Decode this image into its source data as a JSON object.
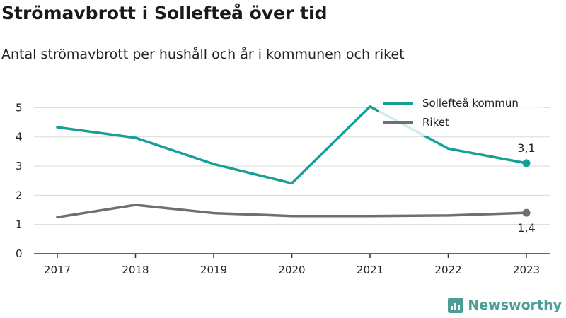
{
  "title": "Strömavbrott i Sollefteå över tid",
  "subtitle": "Antal strömavbrott per hushåll och år i kommunen och riket",
  "brand": "Newsworthy",
  "chart_data": {
    "type": "line",
    "x": [
      "2017",
      "2018",
      "2019",
      "2020",
      "2021",
      "2022",
      "2023"
    ],
    "yticks": [
      "0",
      "1",
      "2",
      "3",
      "4",
      "5"
    ],
    "ylim": [
      0,
      5.3
    ],
    "grid": true,
    "legend_position": "top-right",
    "series": [
      {
        "name": "Sollefteå kommun",
        "color": "#16a095",
        "values": [
          4.33,
          3.97,
          3.07,
          2.41,
          5.04,
          3.6,
          3.1
        ],
        "end_label": "3,1"
      },
      {
        "name": "Riket",
        "color": "#6e6e74",
        "values": [
          1.25,
          1.67,
          1.39,
          1.29,
          1.29,
          1.31,
          1.4
        ],
        "end_label": "1,4"
      }
    ]
  }
}
